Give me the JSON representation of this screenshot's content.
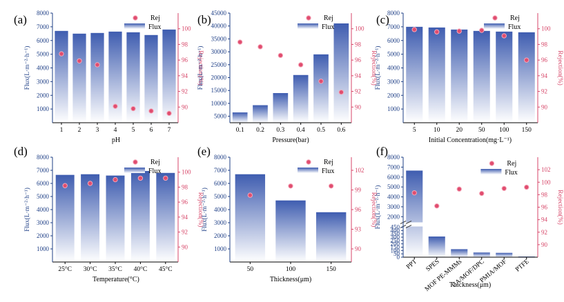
{
  "colors": {
    "flux_top": "#3f5db0",
    "flux_bottom": "#ffffff",
    "rej": "#e04d6f",
    "flux_axis": "#1e3f86",
    "rej_axis": "#d74668"
  },
  "legend": {
    "rej": "Rej",
    "flux": "Flux"
  },
  "chart_data": [
    {
      "type": "bar",
      "panel": "(a)",
      "categories": [
        "1",
        "2",
        "3",
        "4",
        "5",
        "6",
        "7"
      ],
      "series": [
        {
          "name": "Flux",
          "values": [
            6700,
            6500,
            6550,
            6650,
            6600,
            6400,
            6800
          ]
        },
        {
          "name": "Rej",
          "values": [
            96.8,
            95.9,
            95.4,
            90.1,
            89.8,
            89.5,
            89.2
          ]
        }
      ],
      "xlabel": "pH",
      "ylabel": "Flux(L·m⁻²·h⁻¹)",
      "y2label": "Rejection(%)",
      "ylim": [
        0,
        8000
      ],
      "yticks": [
        1000,
        2000,
        3000,
        4000,
        5000,
        6000,
        7000,
        8000
      ],
      "y2lim": [
        88,
        102
      ],
      "y2ticks": [
        90,
        92,
        94,
        96,
        98,
        100
      ],
      "legend_position": "top-right"
    },
    {
      "type": "bar",
      "panel": "(b)",
      "categories": [
        "0.1",
        "0.2",
        "0.3",
        "0.4",
        "0.5",
        "0.6"
      ],
      "series": [
        {
          "name": "Flux",
          "values": [
            6500,
            9300,
            14000,
            21000,
            29000,
            41000
          ]
        },
        {
          "name": "Rej",
          "values": [
            98.3,
            97.7,
            96.6,
            95.4,
            93.3,
            91.9
          ]
        }
      ],
      "xlabel": "Pressure(bar)",
      "ylabel": "Flux(L·m⁻²·h⁻¹)",
      "y2label": "Rejection(%)",
      "ylim": [
        2500,
        45000
      ],
      "yticks": [
        5000,
        10000,
        15000,
        20000,
        25000,
        30000,
        35000,
        40000,
        45000
      ],
      "y2lim": [
        88,
        102
      ],
      "y2ticks": [
        90,
        92,
        94,
        96,
        98,
        100
      ],
      "legend_position": "top-right"
    },
    {
      "type": "bar",
      "panel": "(c)",
      "categories": [
        "5",
        "10",
        "20",
        "50",
        "100",
        "150"
      ],
      "series": [
        {
          "name": "Flux",
          "values": [
            7000,
            6950,
            6800,
            6700,
            6650,
            6600
          ]
        },
        {
          "name": "Rej",
          "values": [
            99.9,
            99.6,
            99.7,
            99.8,
            99.1,
            96.0
          ]
        }
      ],
      "xlabel": "Initial Concentration(mg·L⁻¹)",
      "ylabel": "Flux(L·m⁻²·h⁻¹)",
      "y2label": "Rejection(%)",
      "ylim": [
        0,
        8000
      ],
      "yticks": [
        1000,
        2000,
        3000,
        4000,
        5000,
        6000,
        7000,
        8000
      ],
      "y2lim": [
        88,
        102
      ],
      "y2ticks": [
        90,
        92,
        94,
        96,
        98,
        100
      ],
      "legend_position": "top-right"
    },
    {
      "type": "bar",
      "panel": "(d)",
      "categories": [
        "25°C",
        "30°C",
        "35°C",
        "40°C",
        "45°C"
      ],
      "series": [
        {
          "name": "Flux",
          "values": [
            6650,
            6700,
            6600,
            6950,
            6800
          ]
        },
        {
          "name": "Rej",
          "values": [
            98.2,
            98.5,
            99.0,
            99.2,
            99.2
          ]
        }
      ],
      "xlabel": "Temperature(°C)",
      "ylabel": "Flux(L·m⁻²·h⁻¹)",
      "y2label": "Rejection(%)",
      "ylim": [
        0,
        8000
      ],
      "yticks": [
        1000,
        2000,
        3000,
        4000,
        5000,
        6000,
        7000,
        8000
      ],
      "y2lim": [
        88,
        102
      ],
      "y2ticks": [
        90,
        92,
        94,
        96,
        98,
        100
      ],
      "legend_position": "top-right"
    },
    {
      "type": "bar",
      "panel": "(e)",
      "categories": [
        "50",
        "100",
        "150"
      ],
      "series": [
        {
          "name": "Flux",
          "values": [
            6700,
            4700,
            3800
          ]
        },
        {
          "name": "Rej",
          "values": [
            98.2,
            99.6,
            99.6
          ]
        }
      ],
      "xlabel": "Thickness(μm)",
      "ylabel": "Flux(L·m⁻²·h⁻¹)",
      "y2label": "Rejection(%)",
      "ylim": [
        0,
        8000
      ],
      "yticks": [
        1000,
        2000,
        3000,
        4000,
        5000,
        6000,
        7000,
        8000
      ],
      "y2lim": [
        88,
        104
      ],
      "y2ticks": [
        90,
        93,
        96,
        99,
        102
      ],
      "legend_position": "top-right"
    },
    {
      "type": "bar",
      "panel": "(f)",
      "categories": [
        "PPT",
        "SPES",
        "MOF PE-MMMs",
        "CA/MOF/DPC",
        "PMIA/MOF",
        "PTFE"
      ],
      "series": [
        {
          "name": "Flux",
          "values": [
            6650,
            310,
            120,
            70,
            65,
            10
          ]
        },
        {
          "name": "Rej",
          "values": [
            98.3,
            96.2,
            98.9,
            98.2,
            99.0,
            99.2
          ]
        }
      ],
      "xlabel": "Thickness(μm)",
      "ylabel": "Flux(L·m⁻²·h⁻¹)",
      "y2label": "Rejection(%)",
      "ylim_lower": [
        0,
        450
      ],
      "yticks_lower": [
        0,
        50,
        100,
        150,
        200,
        250,
        300,
        350,
        400,
        450
      ],
      "ylim_upper": [
        1500,
        8000
      ],
      "yticks_upper": [
        2000,
        3000,
        4000,
        5000,
        6000,
        7000,
        8000
      ],
      "y2lim": [
        88,
        104
      ],
      "y2ticks": [
        90,
        92,
        94,
        96,
        98,
        100,
        102
      ],
      "legend_position": "top-center"
    }
  ]
}
